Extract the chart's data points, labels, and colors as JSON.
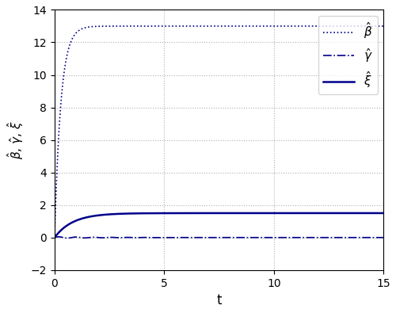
{
  "t_start": 0.01,
  "t_end": 15,
  "n_points": 1000,
  "beta_true": 13.0,
  "gamma_true": 0.0,
  "xi_true": 1.5,
  "beta_rate": 3.5,
  "gamma_rate": 0.5,
  "xi_rate": 1.2,
  "xlim": [
    0,
    15
  ],
  "ylim_bottom": -2,
  "ylim_top": 14,
  "yticks": [
    -2,
    0,
    2,
    4,
    6,
    8,
    10,
    12,
    14
  ],
  "xticks": [
    0,
    5,
    10,
    15
  ],
  "xlabel": "t",
  "ylabel": "$\\hat{\\beta}$, $\\hat{\\gamma}$, $\\hat{\\xi}$",
  "line_color": "#00008B",
  "grid_color": "#b0b0b0",
  "legend_labels": [
    "$\\hat{\\beta}$",
    "$\\hat{\\gamma}$",
    "$\\hat{\\xi}$"
  ],
  "figsize": [
    5.0,
    3.95
  ],
  "dpi": 100
}
